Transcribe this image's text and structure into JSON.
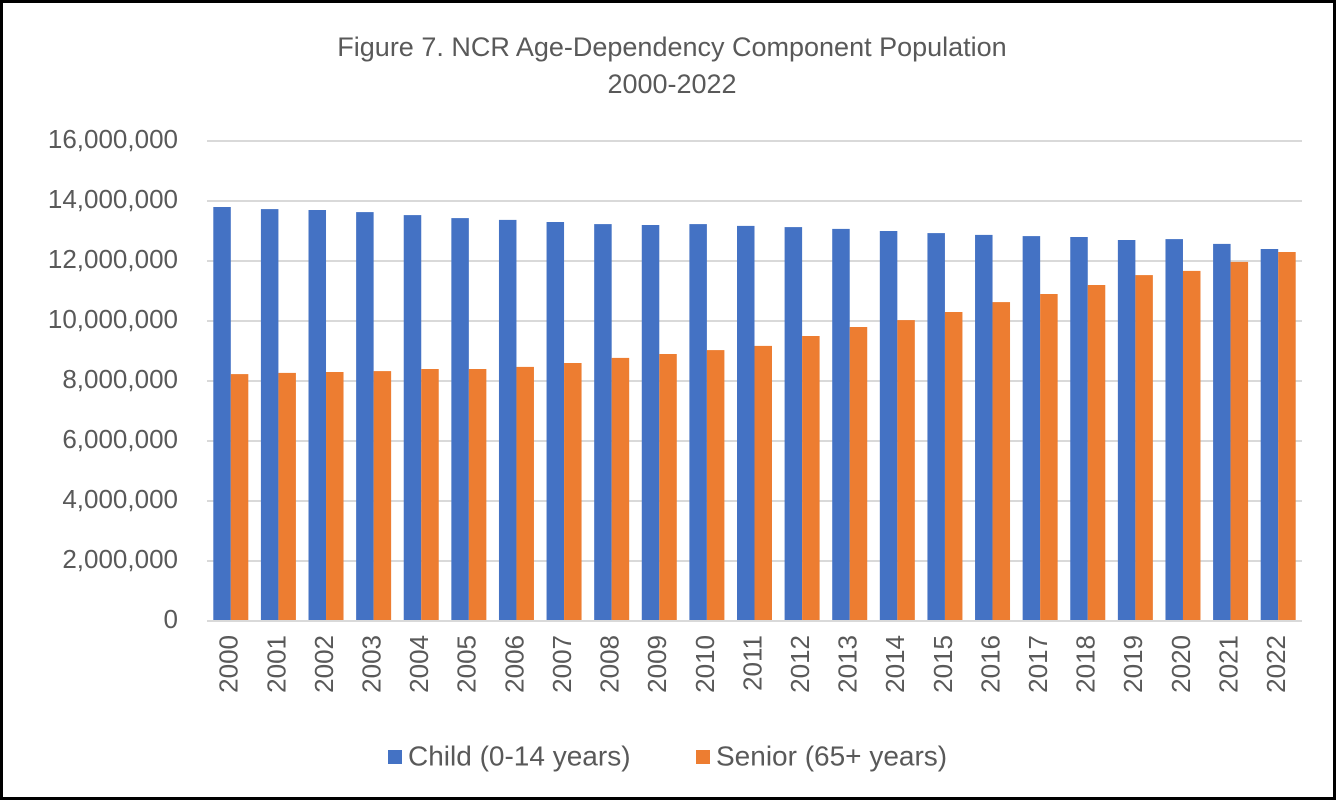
{
  "chart_data": {
    "type": "bar",
    "title": "Figure 7. NCR Age-Dependency Component Population",
    "subtitle": "2000-2022",
    "categories": [
      "2000",
      "2001",
      "2002",
      "2003",
      "2004",
      "2005",
      "2006",
      "2007",
      "2008",
      "2009",
      "2010",
      "2011",
      "2012",
      "2013",
      "2014",
      "2015",
      "2016",
      "2017",
      "2018",
      "2019",
      "2020",
      "2021",
      "2022"
    ],
    "series": [
      {
        "name": "Child (0-14 years)",
        "color": "#4472c4",
        "values": [
          13800000,
          13730000,
          13700000,
          13630000,
          13530000,
          13430000,
          13370000,
          13300000,
          13230000,
          13200000,
          13230000,
          13170000,
          13130000,
          13070000,
          13000000,
          12930000,
          12870000,
          12830000,
          12800000,
          12700000,
          12730000,
          12570000,
          12400000
        ]
      },
      {
        "name": "Senior (65+ years)",
        "color": "#ed7d31",
        "values": [
          8230000,
          8270000,
          8300000,
          8330000,
          8400000,
          8400000,
          8470000,
          8600000,
          8770000,
          8900000,
          9030000,
          9170000,
          9500000,
          9800000,
          10030000,
          10300000,
          10630000,
          10900000,
          11200000,
          11530000,
          11670000,
          11970000,
          12300000
        ]
      }
    ],
    "ylim": [
      0,
      16000000
    ],
    "yticks": [
      0,
      {
        "value": 2000000,
        "label": "2,000,000"
      },
      {
        "value": 4000000,
        "label": "4,000,000"
      },
      {
        "value": 6000000,
        "label": "6,000,000"
      },
      {
        "value": 8000000,
        "label": "8,000,000"
      },
      {
        "value": 10000000,
        "label": "10,000,000"
      },
      {
        "value": 12000000,
        "label": "12,000,000"
      },
      {
        "value": 14000000,
        "label": "14,000,000"
      },
      {
        "value": 16000000,
        "label": "16,000,000"
      }
    ],
    "grid": true,
    "legend": "bottom"
  }
}
